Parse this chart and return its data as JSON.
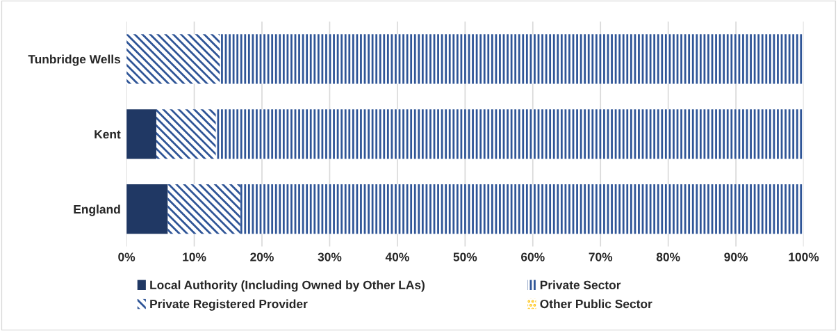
{
  "chart_data": {
    "type": "bar",
    "orientation": "horizontal",
    "stacked": true,
    "categories": [
      "Tunbridge Wells",
      "Kent",
      "England"
    ],
    "series": [
      {
        "name": "Local Authority (Including Owned by Other LAs)",
        "color": "#203864",
        "values": [
          0,
          4.4,
          6.1
        ]
      },
      {
        "name": "Private Registered Provider",
        "color": "#2f5597",
        "values": [
          13.8,
          8.8,
          10.7
        ]
      },
      {
        "name": "Private Sector",
        "color": "#2f5597",
        "values": [
          86.2,
          86.8,
          83.2
        ]
      },
      {
        "name": "Other Public Sector",
        "color": "#ffc000",
        "values": [
          0,
          0,
          0
        ]
      }
    ],
    "xlim": [
      0,
      100
    ],
    "xticks": [
      {
        "value": 0,
        "label": "0%"
      },
      {
        "value": 10,
        "label": "10%"
      },
      {
        "value": 20,
        "label": "20%"
      },
      {
        "value": 30,
        "label": "30%"
      },
      {
        "value": 40,
        "label": "40%"
      },
      {
        "value": 50,
        "label": "50%"
      },
      {
        "value": 60,
        "label": "60%"
      },
      {
        "value": 70,
        "label": "70%"
      },
      {
        "value": 80,
        "label": "80%"
      },
      {
        "value": 90,
        "label": "90%"
      },
      {
        "value": 100,
        "label": "100%"
      }
    ],
    "grid": "x",
    "legend": "bottom"
  }
}
